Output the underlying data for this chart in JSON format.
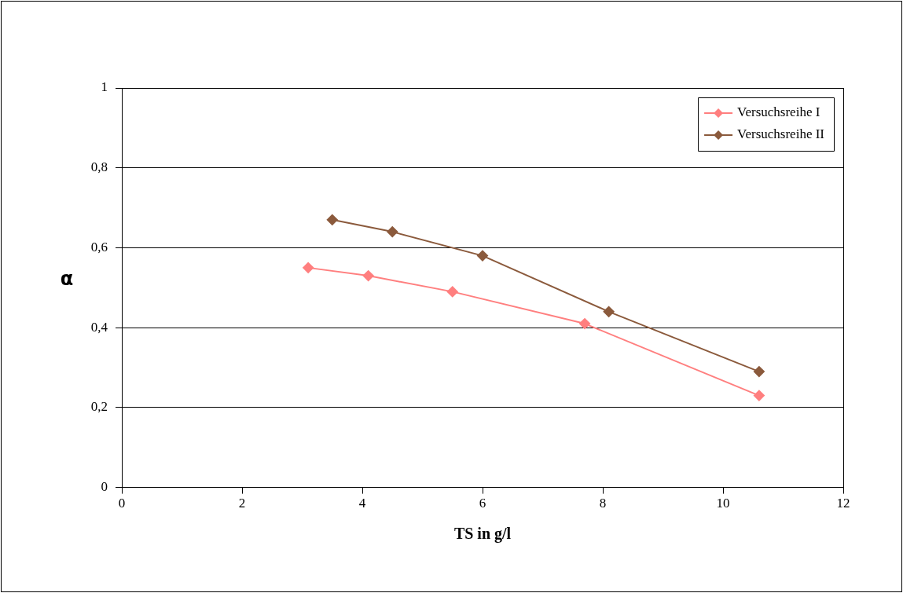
{
  "chart_data": {
    "type": "line",
    "xlabel": "TS in g/l",
    "ylabel": "α",
    "xlim": [
      0,
      12
    ],
    "xticks": [
      0,
      2,
      4,
      6,
      8,
      10,
      12
    ],
    "ylim": [
      0,
      1
    ],
    "yticks": [
      0,
      {
        "value": 0.2,
        "label": "0,2"
      },
      {
        "value": 0.4,
        "label": "0,4"
      },
      {
        "value": 0.6,
        "label": "0,6"
      },
      {
        "value": 0.8,
        "label": "0,8"
      },
      1
    ],
    "grid": "y",
    "legend": "top right",
    "marker": "diamond",
    "line_style": "solid",
    "series": [
      {
        "name": "Versuchsreihe I",
        "color": "#ff7f7f",
        "x": [
          3.1,
          4.1,
          5.5,
          7.7,
          10.6
        ],
        "values": [
          0.55,
          0.53,
          0.49,
          0.41,
          0.23
        ]
      },
      {
        "name": "Versuchsreihe II",
        "color": "#8b5a3c",
        "x": [
          3.5,
          4.5,
          6.0,
          8.1,
          10.6
        ],
        "values": [
          0.67,
          0.64,
          0.58,
          0.44,
          0.29
        ]
      }
    ]
  }
}
